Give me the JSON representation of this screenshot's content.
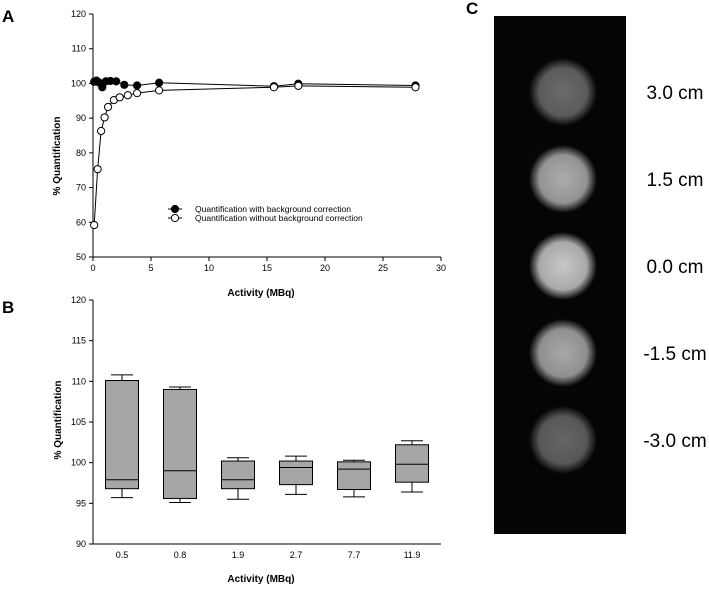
{
  "panels": {
    "a": "A",
    "b": "B",
    "c": "C"
  },
  "chart_data": [
    {
      "type": "line",
      "ylabel": "% Quantification",
      "xlabel": "Activity (MBq)",
      "xlim": [
        0,
        30
      ],
      "ylim": [
        50,
        120
      ],
      "x_ticks": [
        0,
        5,
        10,
        15,
        20,
        25,
        30
      ],
      "y_ticks": [
        50,
        60,
        70,
        80,
        90,
        100,
        110,
        120
      ],
      "legend_position": "center",
      "series": [
        {
          "name": "Quantification with background correction",
          "marker": "filled-circle",
          "x": [
            0.1,
            0.3,
            0.5,
            0.8,
            1.1,
            1.5,
            2.0,
            2.7,
            3.8,
            5.7,
            15.6,
            17.7,
            27.8
          ],
          "y": [
            100.5,
            100.8,
            100.3,
            98.9,
            100.6,
            100.7,
            100.6,
            99.6,
            99.4,
            100.2,
            99.2,
            99.9,
            99.4
          ]
        },
        {
          "name": "Quantification without background correction",
          "marker": "open-circle",
          "x": [
            0.1,
            0.4,
            0.7,
            1.0,
            1.3,
            1.8,
            2.3,
            3.0,
            3.8,
            5.7,
            15.6,
            17.7,
            27.8
          ],
          "y": [
            59.2,
            75.3,
            86.3,
            90.2,
            93.2,
            95.2,
            96.0,
            96.6,
            97.2,
            98.0,
            98.9,
            99.3,
            98.9
          ]
        }
      ]
    },
    {
      "type": "box",
      "ylabel": "% Quantification",
      "xlabel": "Activity (MBq)",
      "ylim": [
        90,
        120
      ],
      "y_ticks": [
        90,
        95,
        100,
        105,
        110,
        115,
        120
      ],
      "categories": [
        "0.5",
        "0.8",
        "1.9",
        "2.7",
        "7.7",
        "11.9"
      ],
      "boxes": [
        {
          "min": 95.7,
          "q1": 96.8,
          "median": 97.9,
          "q3": 110.1,
          "max": 110.8
        },
        {
          "min": 95.1,
          "q1": 95.6,
          "median": 99.0,
          "q3": 109.0,
          "max": 109.3
        },
        {
          "min": 95.5,
          "q1": 96.8,
          "median": 97.9,
          "q3": 100.2,
          "max": 100.6
        },
        {
          "min": 96.1,
          "q1": 97.3,
          "median": 99.4,
          "q3": 100.2,
          "max": 100.8
        },
        {
          "min": 95.8,
          "q1": 96.7,
          "median": 99.2,
          "q3": 100.1,
          "max": 100.3
        },
        {
          "min": 96.4,
          "q1": 97.6,
          "median": 99.8,
          "q3": 102.2,
          "max": 102.7
        }
      ]
    }
  ],
  "phantom": {
    "labels": [
      "3.0 cm",
      "1.5 cm",
      "0.0 cm",
      "-1.5 cm",
      "-3.0 cm"
    ],
    "brightness": [
      0.42,
      0.68,
      0.78,
      0.66,
      0.4
    ]
  }
}
